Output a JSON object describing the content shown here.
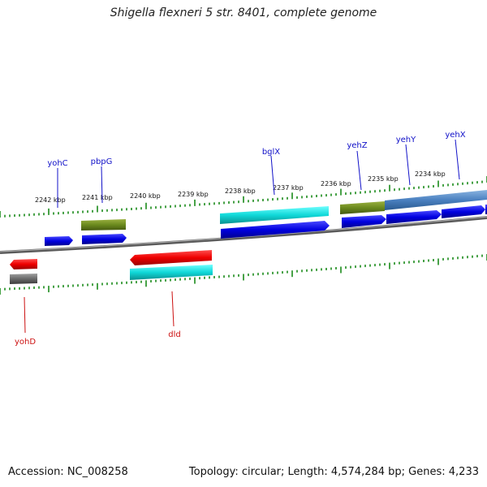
{
  "title": "Shigella flexneri 5 str. 8401, complete genome",
  "footer": {
    "accession": "Accession: NC_008258",
    "summary": "Topology: circular; Length: 4,574,284 bp; Genes: 4,233"
  },
  "colors": {
    "backbone": "#777777",
    "tick": "#1a8a1a",
    "label_forward": "#1010c8",
    "label_reverse": "#cc1010"
  },
  "kbp_labels": [
    "2242 kbp",
    "2241 kbp",
    "2240 kbp",
    "2239 kbp",
    "2238 kbp",
    "2237 kbp",
    "2236 kbp",
    "2235 kbp",
    "2234 kbp"
  ],
  "genes_forward": [
    "yohC",
    "pbpG",
    "bglX",
    "yehZ",
    "yehY",
    "yehX"
  ],
  "genes_reverse": [
    "yohD",
    "dld"
  ]
}
